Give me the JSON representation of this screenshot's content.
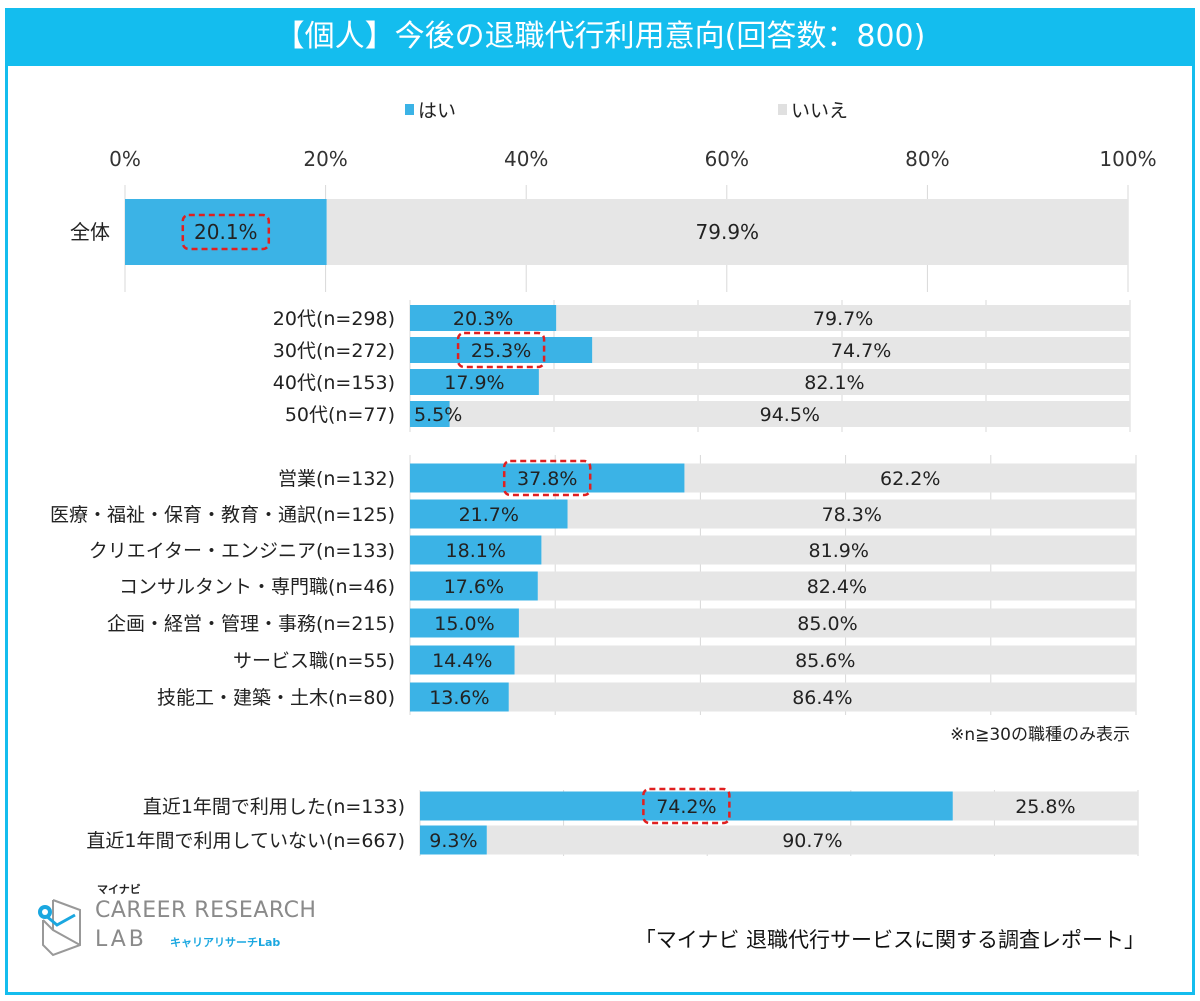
{
  "title": "【個人】今後の退職代行利用意向(回答数：800)",
  "colors": {
    "yes": "#3bb3e6",
    "no": "#e6e6e6",
    "frame": "#14bdee",
    "highlight": "#e02020"
  },
  "chart_data": {
    "type": "bar",
    "orientation": "horizontal-stacked-100",
    "legend": {
      "position": "top",
      "entries": [
        "はい",
        "いいえ"
      ]
    },
    "xticks": [
      "0%",
      "20%",
      "40%",
      "60%",
      "80%",
      "100%"
    ],
    "xlim": [
      0,
      100
    ],
    "grid": true,
    "groups": [
      {
        "rows": [
          {
            "label": "全体",
            "yes": 20.1,
            "no": 79.9,
            "yes_label": "20.1%",
            "no_label": "79.9%",
            "highlight": true
          }
        ]
      },
      {
        "rows": [
          {
            "label": "20代(n=298)",
            "yes": 20.3,
            "no": 79.7,
            "yes_label": "20.3%",
            "no_label": "79.7%"
          },
          {
            "label": "30代(n=272)",
            "yes": 25.3,
            "no": 74.7,
            "yes_label": "25.3%",
            "no_label": "74.7%",
            "highlight": true
          },
          {
            "label": "40代(n=153)",
            "yes": 17.9,
            "no": 82.1,
            "yes_label": "17.9%",
            "no_label": "82.1%"
          },
          {
            "label": "50代(n=77)",
            "yes": 5.5,
            "no": 94.5,
            "yes_label": "5.5%",
            "no_label": "94.5%"
          }
        ]
      },
      {
        "rows": [
          {
            "label": "営業(n=132)",
            "yes": 37.8,
            "no": 62.2,
            "yes_label": "37.8%",
            "no_label": "62.2%",
            "highlight": true
          },
          {
            "label": "医療・福祉・保育・教育・通訳(n=125)",
            "yes": 21.7,
            "no": 78.3,
            "yes_label": "21.7%",
            "no_label": "78.3%"
          },
          {
            "label": "クリエイター・エンジニア(n=133)",
            "yes": 18.1,
            "no": 81.9,
            "yes_label": "18.1%",
            "no_label": "81.9%"
          },
          {
            "label": "コンサルタント・専門職(n=46)",
            "yes": 17.6,
            "no": 82.4,
            "yes_label": "17.6%",
            "no_label": "82.4%"
          },
          {
            "label": "企画・経営・管理・事務(n=215)",
            "yes": 15.0,
            "no": 85.0,
            "yes_label": "15.0%",
            "no_label": "85.0%"
          },
          {
            "label": "サービス職(n=55)",
            "yes": 14.4,
            "no": 85.6,
            "yes_label": "14.4%",
            "no_label": "85.6%"
          },
          {
            "label": "技能工・建築・土木(n=80)",
            "yes": 13.6,
            "no": 86.4,
            "yes_label": "13.6%",
            "no_label": "86.4%"
          }
        ]
      },
      {
        "rows": [
          {
            "label": "直近1年間で利用した(n=133)",
            "yes": 74.2,
            "no": 25.8,
            "yes_label": "74.2%",
            "no_label": "25.8%",
            "highlight": true
          },
          {
            "label": "直近1年間で利用していない(n=667)",
            "yes": 9.3,
            "no": 90.7,
            "yes_label": "9.3%",
            "no_label": "90.7%"
          }
        ]
      }
    ],
    "note": "※n≧30の職種のみ表示"
  },
  "footer": {
    "logo": {
      "brand": "マイナビ",
      "line1": "CAREER RESEARCH",
      "line2": "LAB",
      "kana": "キャリアリサーチLab"
    },
    "source": "「マイナビ 退職代行サービスに関する調査レポート」"
  }
}
